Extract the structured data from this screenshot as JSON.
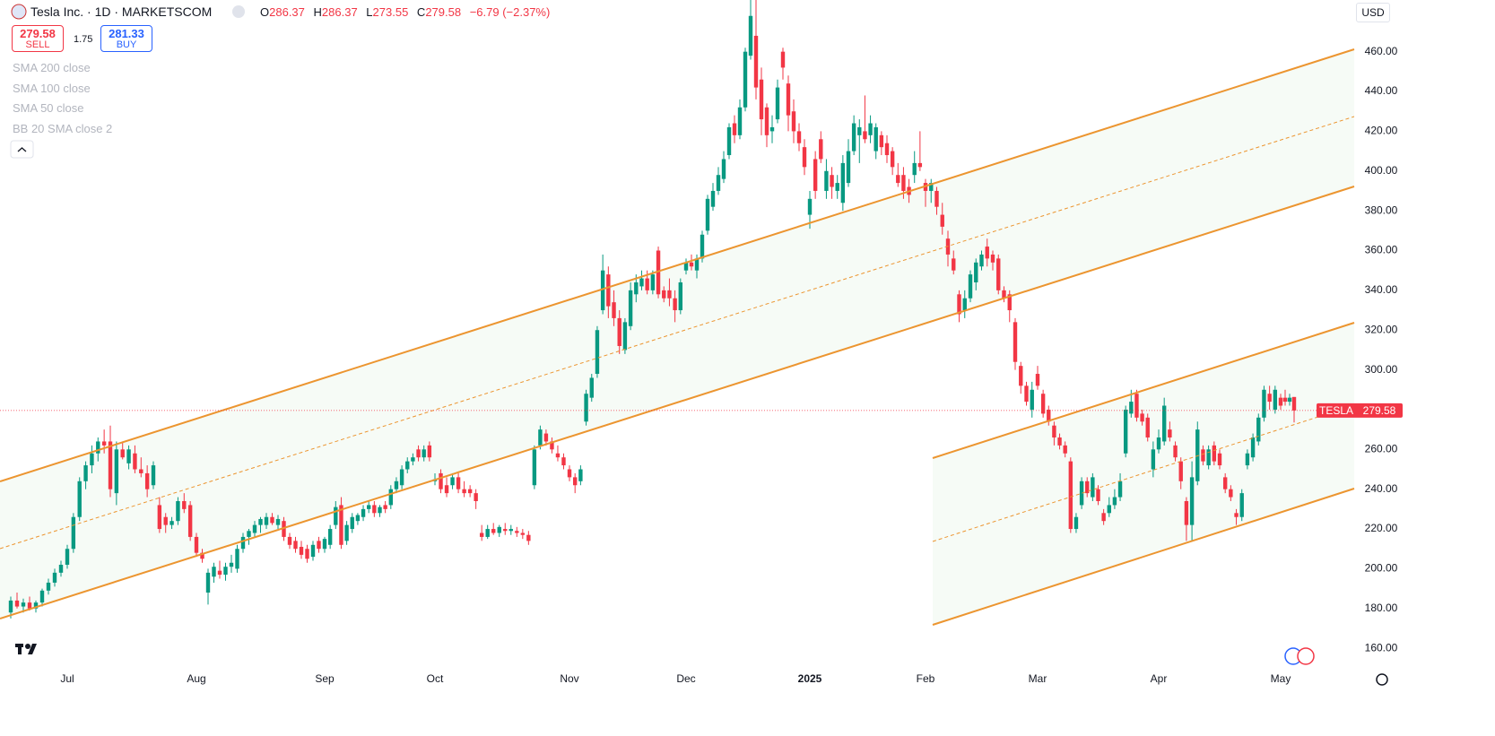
{
  "header": {
    "symbol": "Tesla Inc. · 1D · MARKETSCOM",
    "ohlc": [
      {
        "label": "O",
        "value": "286.37"
      },
      {
        "label": "H",
        "value": "286.37"
      },
      {
        "label": "L",
        "value": "273.55"
      },
      {
        "label": "C",
        "value": "279.58"
      }
    ],
    "change": "−6.79 (−2.37%)"
  },
  "trade": {
    "sell_price": "279.58",
    "sell": "SELL",
    "spread": "1.75",
    "buy_price": "281.33",
    "buy": "BUY"
  },
  "indicators": [
    "SMA 200 close",
    "SMA 100 close",
    "SMA 50 close",
    "BB 20 SMA close 2"
  ],
  "currency": "USD",
  "chart_data": {
    "type": "candlestick",
    "up_color": "#089981",
    "down_color": "#f23645",
    "grid": false,
    "ylim": [
      151.5,
      486
    ],
    "yticks": [
      {
        "value": 160,
        "label": "160.00"
      },
      {
        "value": 180,
        "label": "180.00"
      },
      {
        "value": 200,
        "label": "200.00"
      },
      {
        "value": 220,
        "label": "220.00"
      },
      {
        "value": 240,
        "label": "240.00"
      },
      {
        "value": 260,
        "label": "260.00"
      },
      {
        "value": 280,
        "label": "280.00"
      },
      {
        "value": 300,
        "label": "300.00"
      },
      {
        "value": 320,
        "label": "320.00"
      },
      {
        "value": 340,
        "label": "340.00"
      },
      {
        "value": 360,
        "label": "360.00"
      },
      {
        "value": 380,
        "label": "380.00"
      },
      {
        "value": 400,
        "label": "400.00"
      },
      {
        "value": 420,
        "label": "420.00"
      },
      {
        "value": 440,
        "label": "440.00"
      },
      {
        "value": 460,
        "label": "460.00"
      }
    ],
    "xticks": [
      {
        "value": 9,
        "label": "Jul"
      },
      {
        "value": 30,
        "label": "Aug"
      },
      {
        "value": 52,
        "label": "Sep"
      },
      {
        "value": 72,
        "label": "Oct"
      },
      {
        "value": 95,
        "label": "Nov"
      },
      {
        "value": 116,
        "label": "Dec"
      },
      {
        "value": 139,
        "label": "2025"
      },
      {
        "value": 160,
        "label": "Feb"
      },
      {
        "value": 180,
        "label": "Mar"
      },
      {
        "value": 202,
        "label": "Apr"
      },
      {
        "value": 224,
        "label": "May"
      }
    ],
    "last_price_name": "TESLA",
    "last_price": 279.58,
    "candles": [
      [
        178,
        186,
        175,
        184
      ],
      [
        184,
        188,
        180,
        181
      ],
      [
        181,
        185,
        178,
        183
      ],
      [
        183,
        186,
        179,
        180
      ],
      [
        180,
        184,
        178,
        183
      ],
      [
        183,
        190,
        181,
        189
      ],
      [
        189,
        195,
        187,
        193
      ],
      [
        193,
        200,
        191,
        198
      ],
      [
        198,
        204,
        196,
        202
      ],
      [
        202,
        212,
        200,
        210
      ],
      [
        210,
        228,
        208,
        226
      ],
      [
        226,
        246,
        224,
        244
      ],
      [
        244,
        254,
        240,
        252
      ],
      [
        252,
        262,
        248,
        258
      ],
      [
        258,
        266,
        254,
        264
      ],
      [
        264,
        270,
        258,
        262
      ],
      [
        264,
        272,
        236,
        240
      ],
      [
        238,
        264,
        232,
        260
      ],
      [
        260,
        264,
        255,
        256
      ],
      [
        253,
        262,
        250,
        260
      ],
      [
        258,
        262,
        248,
        250
      ],
      [
        250,
        256,
        246,
        248
      ],
      [
        248,
        252,
        236,
        240
      ],
      [
        242,
        254,
        240,
        252
      ],
      [
        232,
        236,
        218,
        220
      ],
      [
        226,
        228,
        218,
        222
      ],
      [
        222,
        226,
        220,
        224
      ],
      [
        224,
        236,
        222,
        234
      ],
      [
        234,
        238,
        228,
        230
      ],
      [
        232,
        234,
        214,
        216
      ],
      [
        216,
        218,
        206,
        208
      ],
      [
        208,
        210,
        203,
        205
      ],
      [
        188,
        200,
        182,
        198
      ],
      [
        196,
        203,
        193,
        201
      ],
      [
        199,
        204,
        195,
        197
      ],
      [
        197,
        203,
        194,
        201
      ],
      [
        201,
        207,
        198,
        203
      ],
      [
        200,
        212,
        198,
        210
      ],
      [
        210,
        218,
        208,
        216
      ],
      [
        216,
        220,
        212,
        219
      ],
      [
        218,
        224,
        216,
        222
      ],
      [
        222,
        226,
        218,
        225
      ],
      [
        222,
        228,
        220,
        226
      ],
      [
        226,
        228,
        222,
        223
      ],
      [
        222,
        227,
        220,
        225
      ],
      [
        224,
        226,
        214,
        216
      ],
      [
        216,
        218,
        210,
        212
      ],
      [
        214,
        216,
        208,
        210
      ],
      [
        211,
        214,
        205,
        207
      ],
      [
        210,
        212,
        203,
        205
      ],
      [
        206,
        214,
        204,
        212
      ],
      [
        214,
        216,
        208,
        210
      ],
      [
        210,
        216,
        208,
        215
      ],
      [
        212,
        222,
        210,
        220
      ],
      [
        222,
        234,
        220,
        231
      ],
      [
        232,
        236,
        210,
        212
      ],
      [
        214,
        224,
        212,
        222
      ],
      [
        220,
        228,
        218,
        226
      ],
      [
        224,
        228,
        222,
        227
      ],
      [
        226,
        232,
        224,
        230
      ],
      [
        230,
        234,
        228,
        232
      ],
      [
        232,
        234,
        226,
        228
      ],
      [
        228,
        232,
        226,
        231
      ],
      [
        232,
        234,
        228,
        230
      ],
      [
        232,
        242,
        230,
        240
      ],
      [
        240,
        246,
        238,
        244
      ],
      [
        242,
        252,
        240,
        250
      ],
      [
        250,
        256,
        248,
        254
      ],
      [
        254,
        258,
        252,
        256
      ],
      [
        260,
        262,
        254,
        256
      ],
      [
        256,
        262,
        254,
        260
      ],
      [
        262,
        264,
        254,
        256
      ],
      [
        244,
        248,
        242,
        245
      ],
      [
        248,
        250,
        238,
        240
      ],
      [
        242,
        246,
        236,
        238
      ],
      [
        242,
        248,
        240,
        246
      ],
      [
        246,
        248,
        238,
        240
      ],
      [
        240,
        244,
        236,
        238
      ],
      [
        240,
        242,
        236,
        238
      ],
      [
        238,
        240,
        230,
        234
      ],
      [
        218,
        222,
        214,
        216
      ],
      [
        216,
        222,
        215,
        220
      ],
      [
        220,
        223,
        217,
        218
      ],
      [
        218,
        222,
        216,
        221
      ],
      [
        220,
        223,
        217,
        219
      ],
      [
        219,
        222,
        217,
        220
      ],
      [
        219,
        221,
        216,
        218
      ],
      [
        218,
        220,
        215,
        217
      ],
      [
        217,
        219,
        212,
        214
      ],
      [
        242,
        262,
        240,
        260
      ],
      [
        262,
        272,
        260,
        270
      ],
      [
        268,
        270,
        262,
        264
      ],
      [
        264,
        266,
        258,
        260
      ],
      [
        258,
        262,
        254,
        256
      ],
      [
        256,
        258,
        250,
        252
      ],
      [
        250,
        252,
        244,
        246
      ],
      [
        246,
        248,
        238,
        242
      ],
      [
        244,
        252,
        242,
        250
      ],
      [
        274,
        290,
        272,
        288
      ],
      [
        286,
        298,
        284,
        296
      ],
      [
        298,
        322,
        296,
        320
      ],
      [
        330,
        358,
        328,
        350
      ],
      [
        348,
        352,
        326,
        332
      ],
      [
        334,
        340,
        322,
        326
      ],
      [
        326,
        330,
        308,
        312
      ],
      [
        310,
        326,
        308,
        324
      ],
      [
        322,
        344,
        320,
        340
      ],
      [
        338,
        348,
        334,
        344
      ],
      [
        342,
        350,
        340,
        346
      ],
      [
        346,
        350,
        338,
        340
      ],
      [
        340,
        350,
        338,
        348
      ],
      [
        360,
        362,
        336,
        338
      ],
      [
        340,
        342,
        334,
        336
      ],
      [
        340,
        346,
        332,
        336
      ],
      [
        336,
        340,
        324,
        330
      ],
      [
        330,
        346,
        328,
        344
      ],
      [
        350,
        356,
        348,
        354
      ],
      [
        354,
        358,
        350,
        352
      ],
      [
        350,
        358,
        346,
        356
      ],
      [
        356,
        370,
        354,
        368
      ],
      [
        370,
        388,
        368,
        386
      ],
      [
        382,
        394,
        380,
        390
      ],
      [
        390,
        402,
        388,
        398
      ],
      [
        396,
        410,
        394,
        406
      ],
      [
        408,
        424,
        406,
        422
      ],
      [
        424,
        428,
        414,
        418
      ],
      [
        418,
        436,
        416,
        432
      ],
      [
        432,
        462,
        430,
        460
      ],
      [
        458,
        486,
        456,
        478
      ],
      [
        468,
        486,
        436,
        442
      ],
      [
        446,
        452,
        418,
        426
      ],
      [
        432,
        434,
        412,
        418
      ],
      [
        420,
        428,
        414,
        422
      ],
      [
        426,
        446,
        424,
        442
      ],
      [
        460,
        462,
        446,
        452
      ],
      [
        444,
        448,
        420,
        428
      ],
      [
        430,
        436,
        414,
        420
      ],
      [
        420,
        424,
        410,
        414
      ],
      [
        412,
        416,
        398,
        402
      ],
      [
        378,
        390,
        371,
        386
      ],
      [
        406,
        410,
        386,
        390
      ],
      [
        416,
        420,
        404,
        406
      ],
      [
        390,
        406,
        386,
        400
      ],
      [
        398,
        402,
        386,
        392
      ],
      [
        390,
        398,
        386,
        394
      ],
      [
        384,
        408,
        380,
        404
      ],
      [
        394,
        416,
        392,
        410
      ],
      [
        410,
        428,
        408,
        424
      ],
      [
        418,
        426,
        404,
        422
      ],
      [
        420,
        438,
        414,
        416
      ],
      [
        418,
        428,
        414,
        424
      ],
      [
        410,
        424,
        406,
        422
      ],
      [
        418,
        420,
        408,
        412
      ],
      [
        414,
        418,
        404,
        408
      ],
      [
        410,
        412,
        398,
        402
      ],
      [
        398,
        404,
        392,
        394
      ],
      [
        398,
        402,
        386,
        390
      ],
      [
        392,
        396,
        384,
        388
      ],
      [
        398,
        410,
        394,
        404
      ],
      [
        404,
        420,
        400,
        402
      ],
      [
        394,
        396,
        382,
        390
      ],
      [
        390,
        396,
        384,
        394
      ],
      [
        390,
        392,
        378,
        382
      ],
      [
        378,
        384,
        368,
        372
      ],
      [
        366,
        370,
        352,
        358
      ],
      [
        356,
        360,
        348,
        350
      ],
      [
        338,
        340,
        324,
        328
      ],
      [
        330,
        340,
        326,
        336
      ],
      [
        336,
        350,
        334,
        348
      ],
      [
        344,
        356,
        340,
        354
      ],
      [
        352,
        360,
        350,
        358
      ],
      [
        362,
        366,
        352,
        356
      ],
      [
        358,
        360,
        350,
        354
      ],
      [
        356,
        358,
        338,
        340
      ],
      [
        340,
        342,
        334,
        336
      ],
      [
        338,
        340,
        324,
        330
      ],
      [
        324,
        326,
        300,
        304
      ],
      [
        302,
        304,
        288,
        292
      ],
      [
        292,
        294,
        282,
        284
      ],
      [
        280,
        294,
        276,
        290
      ],
      [
        298,
        302,
        290,
        292
      ],
      [
        288,
        290,
        276,
        278
      ],
      [
        280,
        282,
        272,
        274
      ],
      [
        272,
        274,
        262,
        266
      ],
      [
        266,
        268,
        260,
        262
      ],
      [
        262,
        264,
        256,
        258
      ],
      [
        254,
        256,
        218,
        220
      ],
      [
        220,
        228,
        218,
        226
      ],
      [
        232,
        246,
        230,
        244
      ],
      [
        244,
        246,
        236,
        238
      ],
      [
        236,
        248,
        234,
        246
      ],
      [
        240,
        242,
        232,
        234
      ],
      [
        228,
        230,
        222,
        224
      ],
      [
        228,
        236,
        226,
        232
      ],
      [
        232,
        240,
        230,
        236
      ],
      [
        236,
        248,
        234,
        244
      ],
      [
        258,
        282,
        256,
        280
      ],
      [
        278,
        290,
        276,
        284
      ],
      [
        288,
        290,
        274,
        276
      ],
      [
        278,
        280,
        272,
        274
      ],
      [
        276,
        278,
        264,
        266
      ],
      [
        250,
        264,
        246,
        260
      ],
      [
        260,
        270,
        258,
        266
      ],
      [
        264,
        286,
        262,
        282
      ],
      [
        270,
        274,
        264,
        266
      ],
      [
        262,
        264,
        254,
        256
      ],
      [
        254,
        256,
        240,
        244
      ],
      [
        234,
        236,
        214,
        222
      ],
      [
        222,
        254,
        214,
        246
      ],
      [
        244,
        274,
        242,
        270
      ],
      [
        260,
        262,
        252,
        254
      ],
      [
        252,
        262,
        250,
        260
      ],
      [
        262,
        264,
        252,
        254
      ],
      [
        258,
        260,
        250,
        252
      ],
      [
        246,
        248,
        238,
        240
      ],
      [
        240,
        242,
        234,
        236
      ],
      [
        228,
        230,
        222,
        226
      ],
      [
        226,
        240,
        224,
        238
      ],
      [
        252,
        260,
        250,
        258
      ],
      [
        256,
        268,
        254,
        266
      ],
      [
        264,
        278,
        262,
        276
      ],
      [
        276,
        292,
        274,
        290
      ],
      [
        288,
        292,
        280,
        284
      ],
      [
        280,
        292,
        278,
        290
      ],
      [
        286,
        288,
        280,
        282
      ],
      [
        286,
        290,
        282,
        284
      ],
      [
        284,
        288,
        282,
        286
      ],
      [
        286.37,
        286.37,
        273.55,
        279.58
      ]
    ]
  }
}
